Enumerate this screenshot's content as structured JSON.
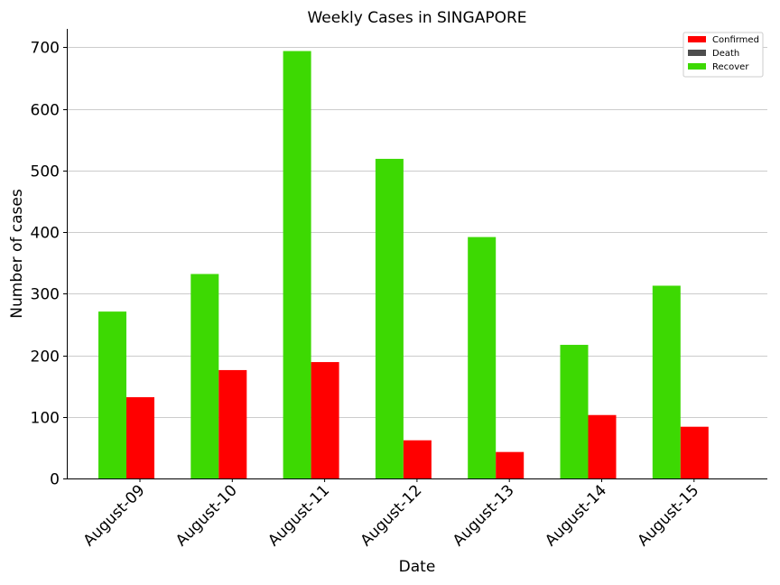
{
  "chart_data": {
    "type": "bar",
    "title": "Weekly Cases in SINGAPORE",
    "xlabel": "Date",
    "ylabel": "Number of cases",
    "categories": [
      "August-09",
      "August-10",
      "August-11",
      "August-12",
      "August-13",
      "August-14",
      "August-15"
    ],
    "series": [
      {
        "name": "Confirmed",
        "color": "#ff0000",
        "values": [
          132,
          176,
          189,
          62,
          43,
          103,
          84
        ]
      },
      {
        "name": "Death",
        "color": "#4d4d4d",
        "values": [
          0,
          0,
          0,
          0,
          0,
          0,
          0
        ]
      },
      {
        "name": "Recover",
        "color": "#3dd902",
        "values": [
          271,
          332,
          694,
          519,
          392,
          217,
          313
        ]
      }
    ],
    "ylim": [
      0,
      730
    ],
    "yticks": [
      0,
      100,
      200,
      300,
      400,
      500,
      600,
      700
    ],
    "grid": "horizontal",
    "legend_position": "top-right"
  }
}
